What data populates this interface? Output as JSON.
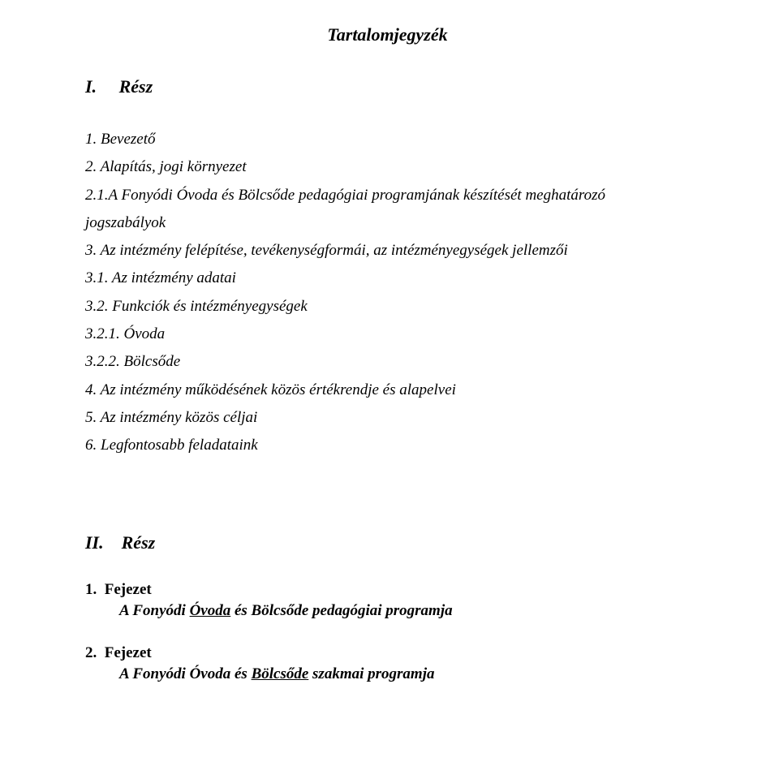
{
  "title": "Tartalomjegyzék",
  "section1": {
    "heading_num": "I.",
    "heading_label": "Rész",
    "items": [
      "1.   Bevezető",
      "2.   Alapítás, jogi környezet",
      "2.1.A Fonyódi Óvoda és Bölcsőde pedagógiai programjának készítését meghatározó",
      "jogszabályok",
      "3.   Az intézmény felépítése, tevékenységformái, az intézményegységek jellemzői",
      "3.1.   Az intézmény adatai",
      "3.2.   Funkciók és intézményegységek",
      "3.2.1. Óvoda",
      "3.2.2. Bölcsőde",
      "4.   Az intézmény működésének közös értékrendje és alapelvei",
      "5.   Az intézmény közös céljai",
      "6.   Legfontosabb feladataink"
    ]
  },
  "section2": {
    "heading_num": "II.",
    "heading_label": "Rész",
    "chapter1": {
      "num": "1.",
      "label": "Fejezet",
      "title_prefix": "A Fonyódi ",
      "title_underline": "Óvoda",
      "title_suffix": " és Bölcsőde pedagógiai programja"
    },
    "chapter2": {
      "num": "2.",
      "label": "Fejezet",
      "title_prefix": "A Fonyódi Óvoda és ",
      "title_underline": "Bölcsőde",
      "title_suffix": " szakmai programja"
    }
  }
}
